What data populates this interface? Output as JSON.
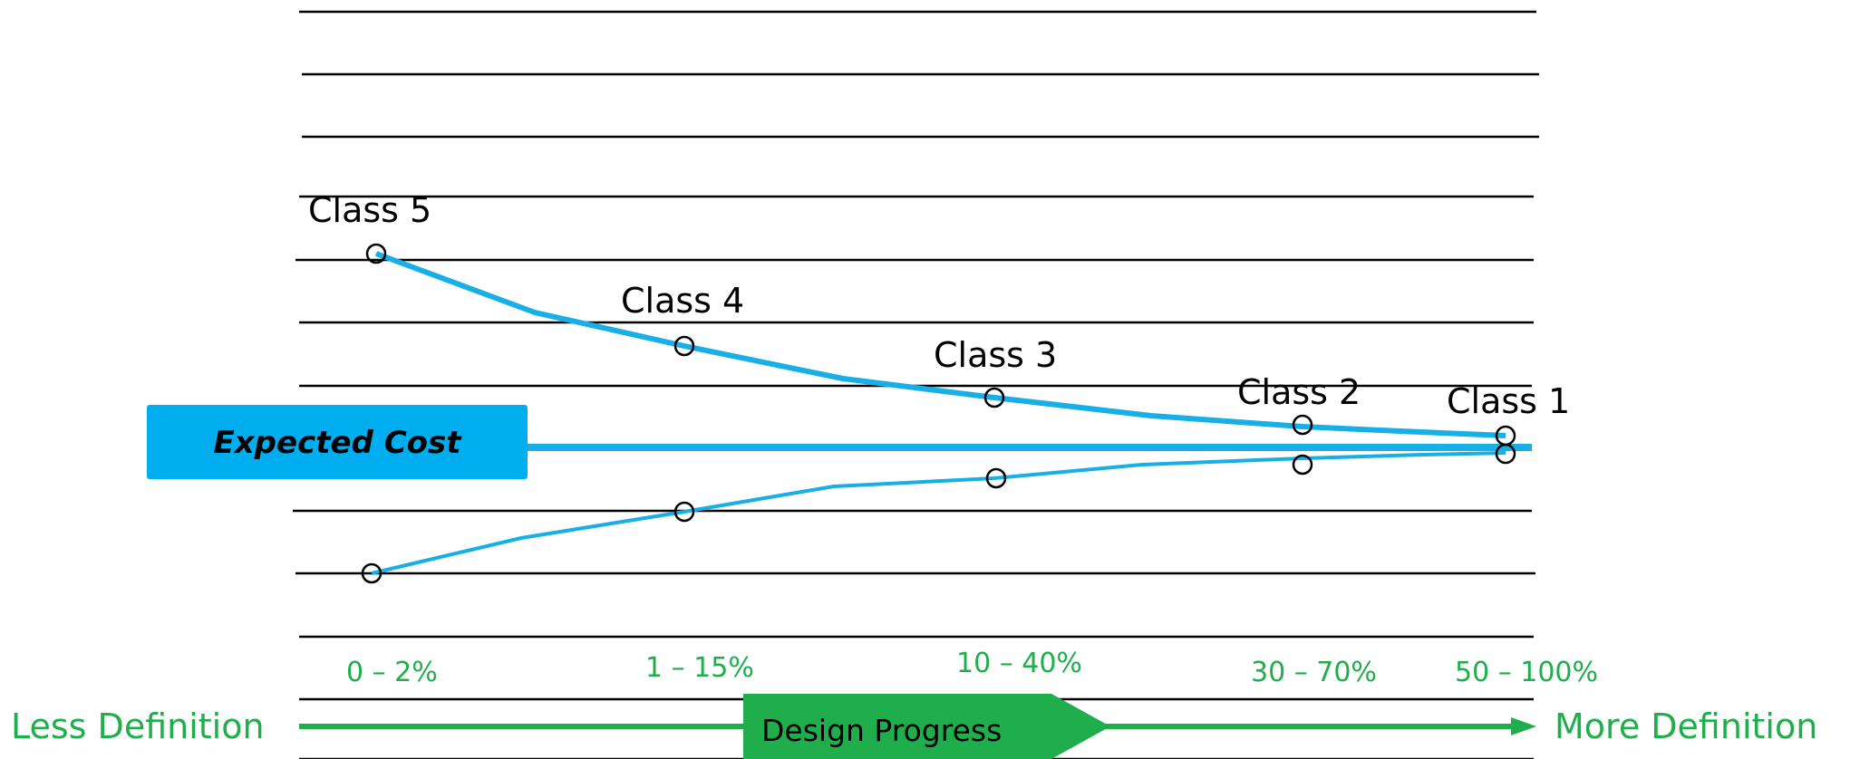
{
  "chart_data": {
    "type": "line",
    "classes": [
      {
        "label": "Class 5",
        "range": "0 – 2%"
      },
      {
        "label": "Class 4",
        "range": "1 – 15%"
      },
      {
        "label": "Class 3",
        "range": "10 – 40%"
      },
      {
        "label": "Class 2",
        "range": "30 – 70%"
      },
      {
        "label": "Class 1",
        "range": "50 – 100%"
      }
    ],
    "center_label": "Expected Cost",
    "axis": {
      "left_label": "Less Definition",
      "right_label": "More Definition",
      "center_label": "Design Progress"
    }
  },
  "colors": {
    "curve": "#18aee6",
    "label_box": "#00aeef",
    "green": "#1fae4b",
    "grid": "#000000"
  }
}
